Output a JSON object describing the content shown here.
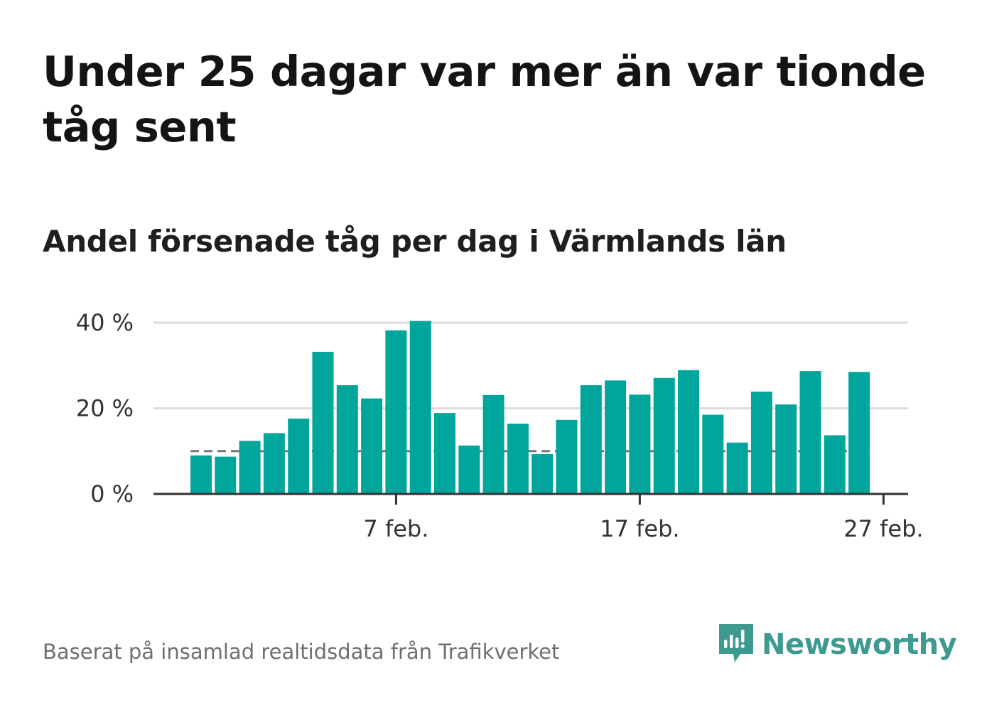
{
  "title": "Under 25 dagar var mer än var tionde tåg sent",
  "subtitle": "Andel försenade tåg per dag i Värmlands län",
  "source": "Baserat på insamlad realtidsdata från Trafikverket",
  "brand": {
    "name": "Newsworthy",
    "icon": "newsworthy-logo-icon",
    "color": "#3e9a91"
  },
  "colors": {
    "bar": "#00a69c",
    "grid": "#dcdcdc",
    "axis": "#333333",
    "reference_line": "#777777"
  },
  "chart_data": {
    "type": "bar",
    "title": "Andel försenade tåg per dag i Värmlands län",
    "xlabel": "",
    "ylabel": "",
    "x": [
      "2024-01-30",
      "2024-01-31",
      "2024-02-01",
      "2024-02-02",
      "2024-02-03",
      "2024-02-04",
      "2024-02-05",
      "2024-02-06",
      "2024-02-07",
      "2024-02-08",
      "2024-02-09",
      "2024-02-10",
      "2024-02-11",
      "2024-02-12",
      "2024-02-13",
      "2024-02-14",
      "2024-02-15",
      "2024-02-16",
      "2024-02-17",
      "2024-02-18",
      "2024-02-19",
      "2024-02-20",
      "2024-02-21",
      "2024-02-22",
      "2024-02-23",
      "2024-02-24",
      "2024-02-25",
      "2024-02-26",
      "2024-02-27"
    ],
    "values": [
      9.0,
      8.7,
      12.4,
      14.2,
      17.6,
      33.2,
      25.4,
      22.3,
      38.2,
      40.4,
      18.9,
      11.3,
      23.1,
      16.4,
      9.3,
      17.3,
      25.4,
      26.5,
      23.2,
      27.1,
      28.9,
      18.5,
      12.0,
      23.9,
      20.9,
      28.7,
      13.7,
      28.5,
      null
    ],
    "reference_line": 10,
    "ylim": [
      0,
      40
    ],
    "yticks": [
      0,
      20,
      40
    ],
    "ytick_labels": [
      "0 %",
      "20 %",
      "40 %"
    ],
    "xticks": [
      {
        "date": "2024-02-07",
        "label": "7 feb."
      },
      {
        "date": "2024-02-17",
        "label": "17 feb."
      },
      {
        "date": "2024-02-27",
        "label": "27 feb."
      }
    ],
    "grid": true
  }
}
